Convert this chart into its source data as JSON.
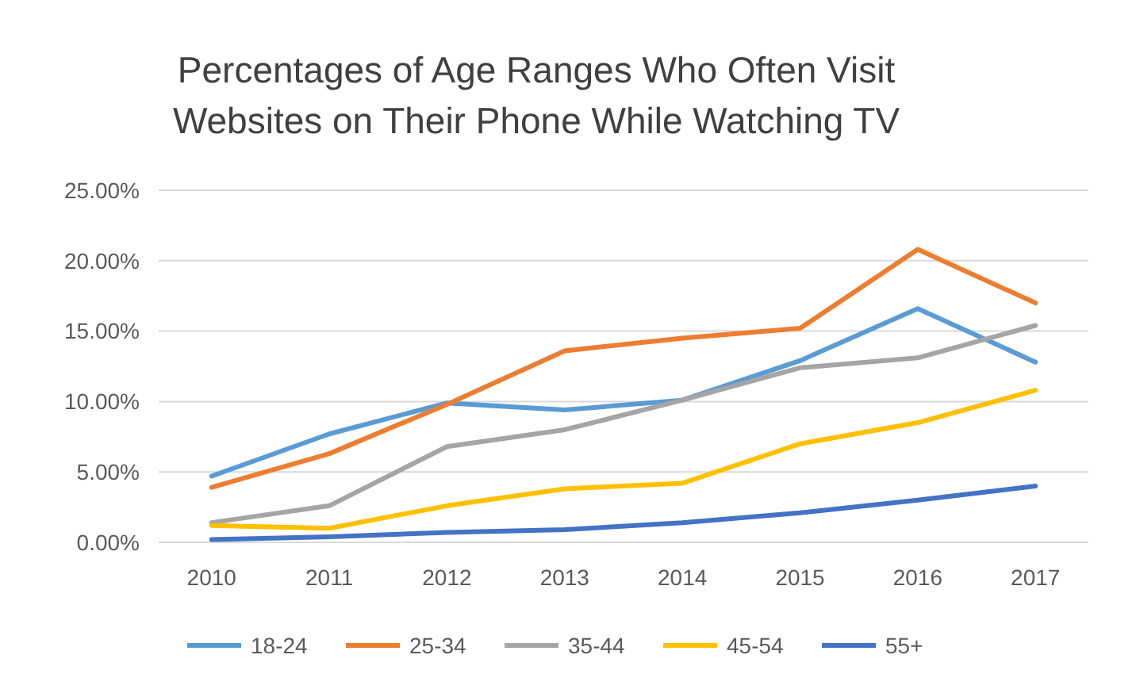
{
  "chart_data": {
    "type": "line",
    "title": "Percentages of Age Ranges Who Often Visit\nWebsites on Their Phone While Watching TV",
    "categories": [
      "2010",
      "2011",
      "2012",
      "2013",
      "2014",
      "2015",
      "2016",
      "2017"
    ],
    "series": [
      {
        "name": "18-24",
        "color": "#5b9bd5",
        "values": [
          4.7,
          7.7,
          9.9,
          9.4,
          10.1,
          12.9,
          16.6,
          12.8
        ]
      },
      {
        "name": "25-34",
        "color": "#ed7d31",
        "values": [
          3.9,
          6.3,
          9.8,
          13.6,
          14.5,
          15.2,
          20.8,
          17.0
        ]
      },
      {
        "name": "35-44",
        "color": "#a5a5a5",
        "values": [
          1.4,
          2.6,
          6.8,
          8.0,
          10.1,
          12.4,
          13.1,
          15.4
        ]
      },
      {
        "name": "45-54",
        "color": "#ffc000",
        "values": [
          1.2,
          1.0,
          2.6,
          3.8,
          4.2,
          7.0,
          8.5,
          10.8
        ]
      },
      {
        "name": "55+",
        "color": "#4472c4",
        "values": [
          0.2,
          0.4,
          0.7,
          0.9,
          1.4,
          2.1,
          3.0,
          4.0
        ]
      }
    ],
    "ylim": [
      0,
      25
    ],
    "yticks": [
      {
        "value": 0,
        "label": "0.00%"
      },
      {
        "value": 5,
        "label": "5.00%"
      },
      {
        "value": 10,
        "label": "10.00%"
      },
      {
        "value": 15,
        "label": "15.00%"
      },
      {
        "value": 20,
        "label": "20.00%"
      },
      {
        "value": 25,
        "label": "25.00%"
      }
    ],
    "grid": "y",
    "legend": "bottom",
    "marker": "none",
    "line_style": "solid"
  }
}
